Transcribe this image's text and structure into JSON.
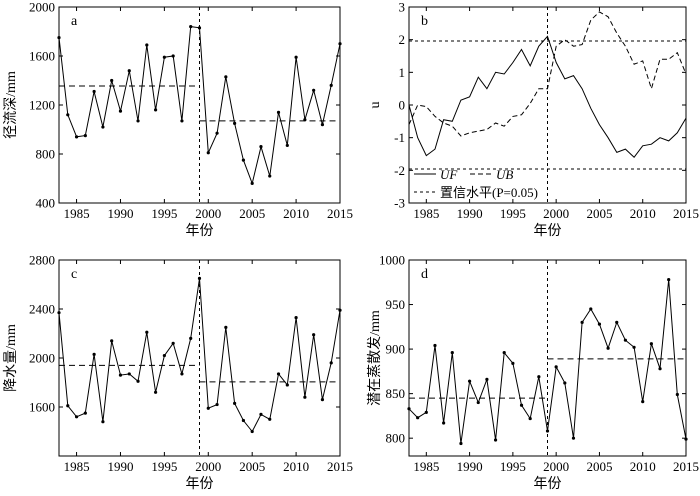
{
  "chart_data": [
    {
      "panel_label": "a",
      "type": "line",
      "xlabel": "年份",
      "ylabel": "径流深/mm",
      "xlim": [
        1983,
        2015
      ],
      "ylim": [
        400,
        2000
      ],
      "xticks": [
        1985,
        1990,
        1995,
        2000,
        2005,
        2010,
        2015
      ],
      "yticks": [
        400,
        800,
        1200,
        1600,
        2000
      ],
      "x": [
        1983,
        1984,
        1985,
        1986,
        1987,
        1988,
        1989,
        1990,
        1991,
        1992,
        1993,
        1994,
        1995,
        1996,
        1997,
        1998,
        1999,
        2000,
        2001,
        2002,
        2003,
        2004,
        2005,
        2006,
        2007,
        2008,
        2009,
        2010,
        2011,
        2012,
        2013,
        2014,
        2015
      ],
      "series": [
        {
          "values": [
            1750,
            1120,
            940,
            950,
            1310,
            1020,
            1400,
            1150,
            1480,
            1070,
            1690,
            1160,
            1590,
            1600,
            1070,
            1840,
            1830,
            810,
            970,
            1430,
            1050,
            750,
            560,
            860,
            620,
            1140,
            870,
            1590,
            1080,
            1320,
            1040,
            1360,
            1700
          ]
        }
      ],
      "mean_lines": [
        {
          "x0": 1983,
          "x1": 1999,
          "y": 1355
        },
        {
          "x0": 1999,
          "x1": 2015,
          "y": 1070
        }
      ],
      "change_point": 1999
    },
    {
      "panel_label": "b",
      "type": "line",
      "xlabel": "年份",
      "ylabel": "u",
      "xlim": [
        1983,
        2015
      ],
      "ylim": [
        -3,
        3
      ],
      "xticks": [
        1985,
        1990,
        1995,
        2000,
        2005,
        2010,
        2015
      ],
      "yticks": [
        -3,
        -2,
        -1,
        0,
        1,
        2,
        3
      ],
      "x": [
        1983,
        1984,
        1985,
        1986,
        1987,
        1988,
        1989,
        1990,
        1991,
        1992,
        1993,
        1994,
        1995,
        1996,
        1997,
        1998,
        1999,
        2000,
        2001,
        2002,
        2003,
        2004,
        2005,
        2006,
        2007,
        2008,
        2009,
        2010,
        2011,
        2012,
        2013,
        2014,
        2015
      ],
      "series": [
        {
          "name": "UF",
          "style": "solid",
          "values": [
            0.0,
            -1.0,
            -1.55,
            -1.35,
            -0.45,
            -0.5,
            0.15,
            0.25,
            0.85,
            0.5,
            1.0,
            0.95,
            1.3,
            1.7,
            1.2,
            1.8,
            2.1,
            1.3,
            0.8,
            0.9,
            0.5,
            -0.1,
            -0.6,
            -1.0,
            -1.45,
            -1.35,
            -1.6,
            -1.25,
            -1.2,
            -1.0,
            -1.1,
            -0.85,
            -0.4
          ]
        },
        {
          "name": "UB",
          "style": "dashed",
          "values": [
            -0.6,
            0.0,
            -0.05,
            -0.35,
            -0.55,
            -0.65,
            -0.95,
            -0.85,
            -0.8,
            -0.75,
            -0.55,
            -0.65,
            -0.35,
            -0.3,
            0.05,
            0.5,
            0.5,
            1.8,
            2.0,
            1.8,
            1.85,
            2.6,
            2.85,
            2.7,
            2.2,
            1.8,
            1.25,
            1.35,
            0.5,
            1.4,
            1.4,
            1.6,
            0.95
          ]
        }
      ],
      "confidence_level": {
        "label": "置信水平",
        "p_text": "P",
        "p_value": "0.05",
        "values": [
          1.96,
          -1.96
        ]
      },
      "legend": {
        "uf": "UF",
        "ub": "UB",
        "conf": "置信水平(P=0.05)"
      },
      "change_point": 1999
    },
    {
      "panel_label": "c",
      "type": "line",
      "xlabel": "年份",
      "ylabel": "降水量/mm",
      "xlim": [
        1983,
        2015
      ],
      "ylim": [
        1200,
        2800
      ],
      "xticks": [
        1985,
        1990,
        1995,
        2000,
        2005,
        2010,
        2015
      ],
      "yticks": [
        1600,
        2000,
        2400,
        2800
      ],
      "x": [
        1983,
        1984,
        1985,
        1986,
        1987,
        1988,
        1989,
        1990,
        1991,
        1992,
        1993,
        1994,
        1995,
        1996,
        1997,
        1998,
        1999,
        2000,
        2001,
        2002,
        2003,
        2004,
        2005,
        2006,
        2007,
        2008,
        2009,
        2010,
        2011,
        2012,
        2013,
        2014,
        2015
      ],
      "series": [
        {
          "values": [
            2370,
            1610,
            1520,
            1550,
            2030,
            1480,
            2140,
            1860,
            1870,
            1810,
            2210,
            1720,
            2020,
            2120,
            1870,
            2160,
            2650,
            1590,
            1620,
            2250,
            1630,
            1490,
            1400,
            1540,
            1500,
            1870,
            1780,
            2330,
            1680,
            2190,
            1660,
            1960,
            2390
          ]
        }
      ],
      "mean_lines": [
        {
          "x0": 1983,
          "x1": 1999,
          "y": 1940
        },
        {
          "x0": 1999,
          "x1": 2015,
          "y": 1805
        }
      ],
      "change_point": 1999
    },
    {
      "panel_label": "d",
      "type": "line",
      "xlabel": "年份",
      "ylabel": "潜在蒸散发/mm",
      "xlim": [
        1983,
        2015
      ],
      "ylim": [
        780,
        1000
      ],
      "xticks": [
        1985,
        1990,
        1995,
        2000,
        2005,
        2010,
        2015
      ],
      "yticks": [
        800,
        850,
        900,
        950,
        1000
      ],
      "x": [
        1983,
        1984,
        1985,
        1986,
        1987,
        1988,
        1989,
        1990,
        1991,
        1992,
        1993,
        1994,
        1995,
        1996,
        1997,
        1998,
        1999,
        2000,
        2001,
        2002,
        2003,
        2004,
        2005,
        2006,
        2007,
        2008,
        2009,
        2010,
        2011,
        2012,
        2013,
        2014,
        2015
      ],
      "series": [
        {
          "values": [
            833,
            823,
            829,
            904,
            817,
            896,
            794,
            864,
            840,
            866,
            798,
            896,
            884,
            837,
            822,
            869,
            808,
            880,
            862,
            800,
            930,
            945,
            928,
            901,
            930,
            910,
            902,
            841,
            906,
            878,
            978,
            849,
            799
          ]
        }
      ],
      "mean_lines": [
        {
          "x0": 1983,
          "x1": 1999,
          "y": 845
        },
        {
          "x0": 1999,
          "x1": 2015,
          "y": 889
        }
      ],
      "change_point": 1999
    }
  ]
}
